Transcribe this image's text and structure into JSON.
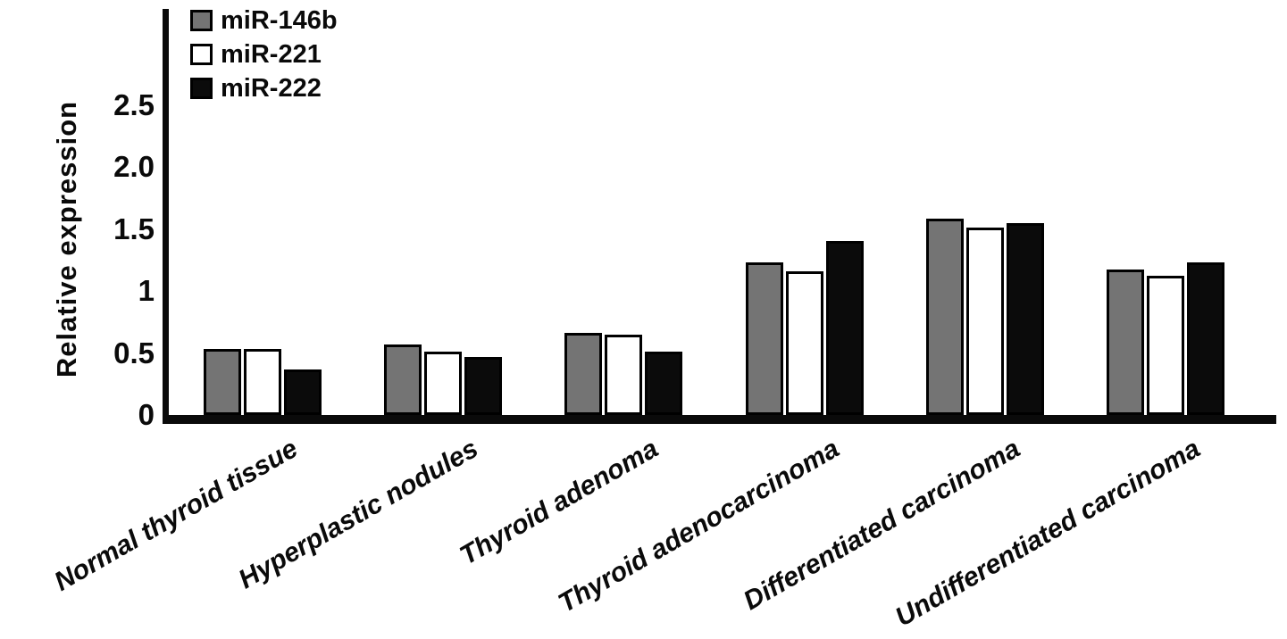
{
  "chart_data": {
    "type": "bar",
    "title": "",
    "xlabel": "",
    "ylabel": "Relative expression",
    "categories": [
      "Normal thyroid tissue",
      "Hyperplastic nodules",
      "Thyroid adenoma",
      "Thyroid adenocarcinoma",
      "Differentiated carcinoma",
      "Undifferentiated carcinoma"
    ],
    "series": [
      {
        "name": "miR-146b",
        "color": "#747474",
        "values": [
          0.53,
          0.57,
          0.66,
          1.23,
          1.58,
          1.17
        ]
      },
      {
        "name": "miR-221",
        "color": "#ffffff",
        "values": [
          0.53,
          0.51,
          0.65,
          1.16,
          1.51,
          1.12
        ]
      },
      {
        "name": "miR-222",
        "color": "#0b0b0b",
        "values": [
          0.37,
          0.47,
          0.51,
          1.4,
          1.55,
          1.23
        ]
      }
    ],
    "ylim": [
      0,
      2.5
    ],
    "ytick_labels": [
      "0",
      "0.5",
      "1",
      "1.5",
      "2.0",
      "2.5"
    ],
    "grid": false,
    "legend_position": "top-left",
    "bar_edge_color": "#000000",
    "axis_color": "#0a0a0a"
  }
}
